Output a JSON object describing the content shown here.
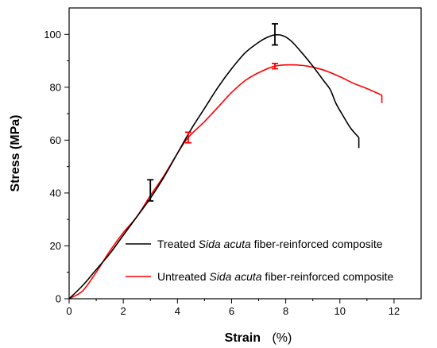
{
  "chart_data": {
    "type": "line",
    "xlabel": "Strain",
    "xlabel_unit": "(%)",
    "ylabel": "Stress (MPa)",
    "xlim": [
      0,
      13
    ],
    "ylim": [
      0,
      110
    ],
    "xticks": [
      0,
      2,
      4,
      6,
      8,
      10,
      12
    ],
    "yticks": [
      0,
      20,
      40,
      60,
      80,
      100
    ],
    "x_tick_labels": [
      "0",
      "2",
      "4",
      "6",
      "8",
      "10",
      "12"
    ],
    "y_tick_labels": [
      "0",
      "20",
      "40",
      "60",
      "80",
      "100"
    ],
    "grid": false,
    "legend_position": "bottom-right",
    "series": [
      {
        "name": "Treated Sida acuta fiber-reinforced composite",
        "color": "#000000",
        "points": [
          [
            0,
            0
          ],
          [
            0.5,
            5
          ],
          [
            1,
            11
          ],
          [
            1.5,
            17
          ],
          [
            2,
            24
          ],
          [
            2.5,
            31
          ],
          [
            3,
            38
          ],
          [
            3.5,
            46
          ],
          [
            4,
            55
          ],
          [
            4.5,
            64
          ],
          [
            5,
            72
          ],
          [
            5.5,
            80
          ],
          [
            6,
            87
          ],
          [
            6.5,
            93
          ],
          [
            7,
            97
          ],
          [
            7.3,
            98.8
          ],
          [
            7.6,
            99.8
          ],
          [
            7.9,
            99.5
          ],
          [
            8.2,
            97.5
          ],
          [
            8.6,
            93
          ],
          [
            9,
            88
          ],
          [
            9.4,
            82.5
          ],
          [
            9.65,
            79
          ],
          [
            9.85,
            74
          ],
          [
            10.1,
            69.5
          ],
          [
            10.4,
            64.5
          ],
          [
            10.7,
            61
          ]
        ],
        "end_drop": [
          10.7,
          57
        ],
        "error_bars": [
          {
            "x": 3.0,
            "y": 41,
            "low": 37,
            "high": 45
          },
          {
            "x": 7.6,
            "y": 100,
            "low": 96,
            "high": 104
          }
        ]
      },
      {
        "name": "Untreated Sida acuta fiber-reinforced composite",
        "color": "#ff0000",
        "points": [
          [
            0,
            0
          ],
          [
            0.5,
            3
          ],
          [
            1,
            10
          ],
          [
            1.5,
            18
          ],
          [
            2,
            25
          ],
          [
            2.5,
            31
          ],
          [
            3,
            39
          ],
          [
            3.5,
            46.5
          ],
          [
            4,
            55
          ],
          [
            4.4,
            61
          ],
          [
            5,
            67
          ],
          [
            5.5,
            72.5
          ],
          [
            6,
            78
          ],
          [
            6.5,
            82.5
          ],
          [
            7,
            85.5
          ],
          [
            7.6,
            88
          ],
          [
            8.2,
            88.5
          ],
          [
            8.8,
            88
          ],
          [
            9.4,
            86.5
          ],
          [
            10,
            84
          ],
          [
            10.5,
            81.5
          ],
          [
            11,
            79.5
          ],
          [
            11.55,
            77
          ]
        ],
        "end_drop": [
          11.55,
          74
        ],
        "error_bars": [
          {
            "x": 4.4,
            "y": 61,
            "low": 59,
            "high": 63
          },
          {
            "x": 7.6,
            "y": 88,
            "low": 87,
            "high": 89
          }
        ]
      }
    ],
    "legend": {
      "treated": {
        "prefix": "Treated ",
        "italic": "Sida acuta",
        "suffix": " fiber-reinforced composite"
      },
      "untreated": {
        "prefix": "Untreated ",
        "italic": "Sida acuta",
        "suffix": " fiber-reinforced composite"
      }
    }
  }
}
